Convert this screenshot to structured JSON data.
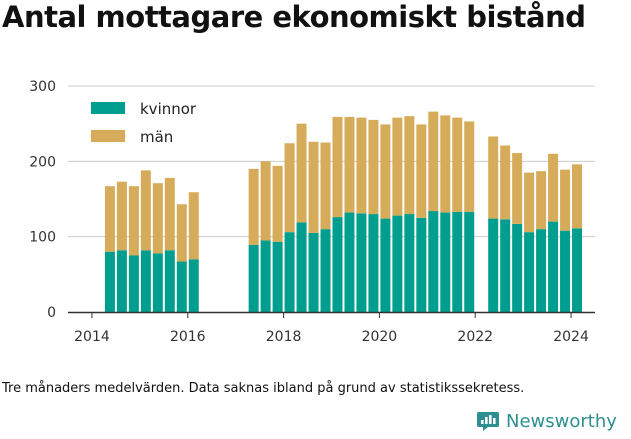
{
  "title": "Antal mottagare ekonomiskt bistånd",
  "caption": "Tre månaders medelvärden. Data saknas ibland på grund av statistikssekretess.",
  "brand": {
    "name": "Newsworthy",
    "color": "#2d8f8f"
  },
  "colors": {
    "kvinnor": "#009e8e",
    "man": "#d6ac5a",
    "axis": "#333333",
    "grid": "#cccccc"
  },
  "chart_data": {
    "type": "bar",
    "stacked": true,
    "title": "Antal mottagare ekonomiskt bistånd",
    "xlabel": "",
    "ylabel": "",
    "ylim": [
      0,
      300
    ],
    "yticks": [
      0,
      100,
      200,
      300
    ],
    "xticks": [
      "2014",
      "2016",
      "2018",
      "2020",
      "2022",
      "2024"
    ],
    "grid": true,
    "legend": "top-left",
    "categories": [
      "2014Q2",
      "2014Q3",
      "2014Q4",
      "2015Q1",
      "2015Q2",
      "2015Q3",
      "2015Q4",
      "2016Q1",
      "2017Q2",
      "2017Q3",
      "2017Q4",
      "2018Q1",
      "2018Q2",
      "2018Q3",
      "2018Q4",
      "2019Q1",
      "2019Q2",
      "2019Q3",
      "2019Q4",
      "2020Q1",
      "2020Q2",
      "2020Q3",
      "2020Q4",
      "2021Q1",
      "2021Q2",
      "2021Q3",
      "2021Q4",
      "2022Q2",
      "2022Q3",
      "2022Q4",
      "2023Q1",
      "2023Q2",
      "2023Q3",
      "2023Q4",
      "2024Q1"
    ],
    "x": [
      2014.375,
      2014.625,
      2014.875,
      2015.125,
      2015.375,
      2015.625,
      2015.875,
      2016.125,
      2017.375,
      2017.625,
      2017.875,
      2018.125,
      2018.375,
      2018.625,
      2018.875,
      2019.125,
      2019.375,
      2019.625,
      2019.875,
      2020.125,
      2020.375,
      2020.625,
      2020.875,
      2021.125,
      2021.375,
      2021.625,
      2021.875,
      2022.375,
      2022.625,
      2022.875,
      2023.125,
      2023.375,
      2023.625,
      2023.875,
      2024.125
    ],
    "series": [
      {
        "name": "kvinnor",
        "values": [
          80,
          82,
          75,
          82,
          78,
          82,
          67,
          70,
          89,
          95,
          93,
          106,
          119,
          105,
          110,
          126,
          132,
          131,
          130,
          124,
          128,
          130,
          125,
          134,
          132,
          133,
          133,
          124,
          123,
          117,
          106,
          110,
          120,
          108,
          111
        ]
      },
      {
        "name": "män",
        "values": [
          87,
          91,
          92,
          106,
          93,
          96,
          76,
          89,
          101,
          105,
          101,
          118,
          131,
          121,
          115,
          133,
          127,
          127,
          125,
          125,
          130,
          130,
          124,
          132,
          129,
          125,
          120,
          109,
          98,
          94,
          79,
          77,
          90,
          81,
          85
        ]
      }
    ]
  }
}
